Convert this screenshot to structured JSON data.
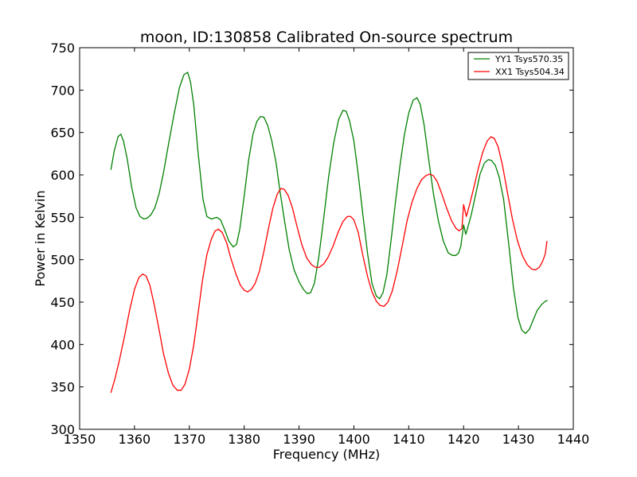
{
  "chart_data": {
    "type": "line",
    "title": "moon, ID:130858 Calibrated On-source spectrum",
    "xlabel": "Frequency (MHz)",
    "ylabel": "Power in Kelvin",
    "xlim": [
      1350,
      1440
    ],
    "ylim": [
      300,
      750
    ],
    "xticks": [
      1350,
      1360,
      1370,
      1380,
      1390,
      1400,
      1410,
      1420,
      1430,
      1440
    ],
    "yticks": [
      300,
      350,
      400,
      450,
      500,
      550,
      600,
      650,
      700,
      750
    ],
    "grid": false,
    "legend_position": "top-right",
    "series": [
      {
        "name": "YY1 Tsys570.35",
        "color": "#008000",
        "points": [
          [
            1355.7,
            606
          ],
          [
            1356.3,
            628
          ],
          [
            1357.0,
            645
          ],
          [
            1357.5,
            648
          ],
          [
            1358.0,
            640
          ],
          [
            1358.7,
            618
          ],
          [
            1359.5,
            585
          ],
          [
            1360.3,
            561
          ],
          [
            1361.0,
            551
          ],
          [
            1361.7,
            548
          ],
          [
            1362.3,
            549
          ],
          [
            1363.0,
            553
          ],
          [
            1363.7,
            561
          ],
          [
            1364.5,
            578
          ],
          [
            1365.3,
            603
          ],
          [
            1366.2,
            636
          ],
          [
            1367.2,
            671
          ],
          [
            1368.2,
            703
          ],
          [
            1369.0,
            718
          ],
          [
            1369.7,
            721
          ],
          [
            1370.2,
            710
          ],
          [
            1370.8,
            683
          ],
          [
            1371.6,
            626
          ],
          [
            1372.5,
            571
          ],
          [
            1373.2,
            551
          ],
          [
            1374.0,
            548
          ],
          [
            1375.0,
            550
          ],
          [
            1375.7,
            547
          ],
          [
            1376.4,
            536
          ],
          [
            1377.2,
            522
          ],
          [
            1378.0,
            515
          ],
          [
            1378.6,
            518
          ],
          [
            1379.2,
            536
          ],
          [
            1380.0,
            575
          ],
          [
            1380.8,
            617
          ],
          [
            1381.6,
            648
          ],
          [
            1382.3,
            663
          ],
          [
            1383.0,
            669
          ],
          [
            1383.6,
            668
          ],
          [
            1384.3,
            658
          ],
          [
            1385.0,
            641
          ],
          [
            1385.8,
            615
          ],
          [
            1386.5,
            582
          ],
          [
            1387.3,
            548
          ],
          [
            1388.2,
            512
          ],
          [
            1389.1,
            488
          ],
          [
            1390.0,
            474
          ],
          [
            1390.8,
            465
          ],
          [
            1391.5,
            460
          ],
          [
            1392.1,
            461
          ],
          [
            1392.8,
            472
          ],
          [
            1393.6,
            503
          ],
          [
            1394.5,
            549
          ],
          [
            1395.4,
            598
          ],
          [
            1396.3,
            637
          ],
          [
            1397.2,
            665
          ],
          [
            1398.0,
            676
          ],
          [
            1398.6,
            675
          ],
          [
            1399.2,
            664
          ],
          [
            1400.0,
            640
          ],
          [
            1400.8,
            600
          ],
          [
            1401.6,
            555
          ],
          [
            1402.5,
            507
          ],
          [
            1403.3,
            472
          ],
          [
            1404.1,
            457
          ],
          [
            1404.7,
            454
          ],
          [
            1405.3,
            461
          ],
          [
            1406.0,
            482
          ],
          [
            1406.8,
            524
          ],
          [
            1407.6,
            569
          ],
          [
            1408.4,
            611
          ],
          [
            1409.2,
            647
          ],
          [
            1410.0,
            673
          ],
          [
            1410.8,
            688
          ],
          [
            1411.5,
            691
          ],
          [
            1412.1,
            683
          ],
          [
            1412.8,
            659
          ],
          [
            1413.6,
            620
          ],
          [
            1414.5,
            578
          ],
          [
            1415.4,
            546
          ],
          [
            1416.3,
            522
          ],
          [
            1417.2,
            508
          ],
          [
            1418.0,
            505
          ],
          [
            1418.6,
            505
          ],
          [
            1419.1,
            508
          ],
          [
            1419.5,
            516
          ],
          [
            1420.0,
            541
          ],
          [
            1420.4,
            530
          ],
          [
            1420.8,
            539
          ],
          [
            1421.4,
            553
          ],
          [
            1422.2,
            577
          ],
          [
            1423.0,
            601
          ],
          [
            1423.8,
            614
          ],
          [
            1424.5,
            618
          ],
          [
            1425.1,
            617
          ],
          [
            1425.8,
            611
          ],
          [
            1426.5,
            597
          ],
          [
            1427.3,
            571
          ],
          [
            1428.2,
            520
          ],
          [
            1429.1,
            466
          ],
          [
            1429.9,
            432
          ],
          [
            1430.6,
            417
          ],
          [
            1431.3,
            413
          ],
          [
            1432.0,
            418
          ],
          [
            1432.7,
            429
          ],
          [
            1433.4,
            440
          ],
          [
            1434.2,
            447
          ],
          [
            1434.9,
            451
          ],
          [
            1435.3,
            452
          ]
        ]
      },
      {
        "name": "XX1 Tsys504.34",
        "color": "#ff0000",
        "points": [
          [
            1355.7,
            343
          ],
          [
            1356.5,
            361
          ],
          [
            1357.3,
            383
          ],
          [
            1358.2,
            410
          ],
          [
            1359.1,
            440
          ],
          [
            1360.0,
            465
          ],
          [
            1360.8,
            479
          ],
          [
            1361.5,
            483
          ],
          [
            1362.1,
            481
          ],
          [
            1362.8,
            470
          ],
          [
            1363.6,
            447
          ],
          [
            1364.5,
            417
          ],
          [
            1365.3,
            389
          ],
          [
            1366.2,
            366
          ],
          [
            1367.0,
            352
          ],
          [
            1367.8,
            346
          ],
          [
            1368.5,
            346
          ],
          [
            1369.2,
            353
          ],
          [
            1370.0,
            371
          ],
          [
            1370.8,
            399
          ],
          [
            1371.6,
            437
          ],
          [
            1372.4,
            476
          ],
          [
            1373.2,
            506
          ],
          [
            1374.0,
            524
          ],
          [
            1374.7,
            534
          ],
          [
            1375.3,
            536
          ],
          [
            1376.0,
            532
          ],
          [
            1376.8,
            520
          ],
          [
            1377.6,
            501
          ],
          [
            1378.5,
            483
          ],
          [
            1379.3,
            470
          ],
          [
            1380.0,
            464
          ],
          [
            1380.6,
            462
          ],
          [
            1381.3,
            465
          ],
          [
            1382.0,
            472
          ],
          [
            1382.8,
            487
          ],
          [
            1383.6,
            510
          ],
          [
            1384.4,
            536
          ],
          [
            1385.2,
            560
          ],
          [
            1386.0,
            577
          ],
          [
            1386.7,
            584
          ],
          [
            1387.3,
            583
          ],
          [
            1388.0,
            576
          ],
          [
            1388.8,
            561
          ],
          [
            1389.6,
            540
          ],
          [
            1390.5,
            518
          ],
          [
            1391.4,
            502
          ],
          [
            1392.3,
            494
          ],
          [
            1393.0,
            491
          ],
          [
            1393.7,
            491
          ],
          [
            1394.5,
            495
          ],
          [
            1395.3,
            503
          ],
          [
            1396.2,
            516
          ],
          [
            1397.1,
            532
          ],
          [
            1398.0,
            545
          ],
          [
            1398.8,
            551
          ],
          [
            1399.4,
            551
          ],
          [
            1400.0,
            547
          ],
          [
            1400.8,
            532
          ],
          [
            1401.6,
            506
          ],
          [
            1402.5,
            480
          ],
          [
            1403.3,
            462
          ],
          [
            1404.1,
            451
          ],
          [
            1404.8,
            446
          ],
          [
            1405.5,
            445
          ],
          [
            1406.2,
            450
          ],
          [
            1407.0,
            463
          ],
          [
            1407.9,
            487
          ],
          [
            1408.8,
            516
          ],
          [
            1409.7,
            546
          ],
          [
            1410.6,
            568
          ],
          [
            1411.5,
            584
          ],
          [
            1412.3,
            594
          ],
          [
            1413.1,
            599
          ],
          [
            1413.8,
            601
          ],
          [
            1414.5,
            599
          ],
          [
            1415.2,
            592
          ],
          [
            1416.0,
            578
          ],
          [
            1416.9,
            561
          ],
          [
            1417.8,
            546
          ],
          [
            1418.6,
            537
          ],
          [
            1419.2,
            534
          ],
          [
            1419.7,
            537
          ],
          [
            1420.0,
            565
          ],
          [
            1420.5,
            551
          ],
          [
            1421.1,
            565
          ],
          [
            1421.9,
            586
          ],
          [
            1422.7,
            608
          ],
          [
            1423.5,
            627
          ],
          [
            1424.3,
            640
          ],
          [
            1425.0,
            645
          ],
          [
            1425.6,
            643
          ],
          [
            1426.3,
            633
          ],
          [
            1427.1,
            611
          ],
          [
            1428.0,
            579
          ],
          [
            1428.9,
            548
          ],
          [
            1429.8,
            523
          ],
          [
            1430.7,
            505
          ],
          [
            1431.6,
            494
          ],
          [
            1432.4,
            489
          ],
          [
            1433.1,
            488
          ],
          [
            1433.8,
            491
          ],
          [
            1434.4,
            498
          ],
          [
            1434.9,
            507
          ],
          [
            1435.2,
            522
          ]
        ]
      }
    ]
  }
}
